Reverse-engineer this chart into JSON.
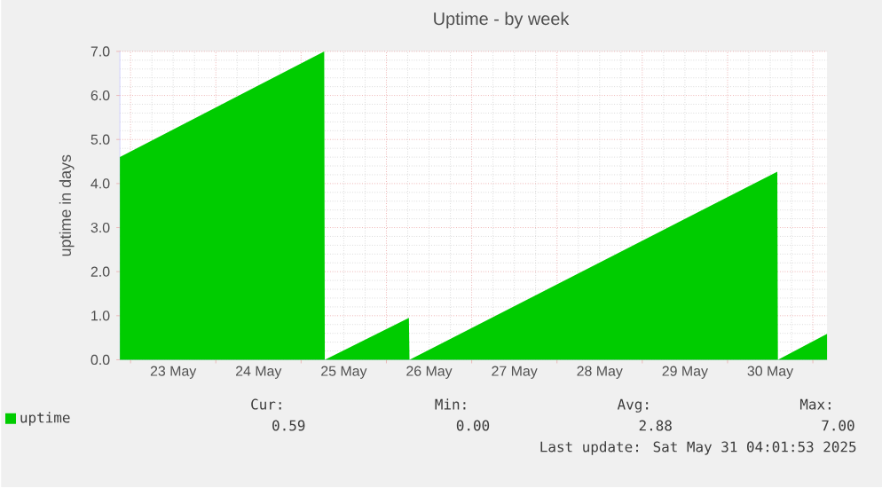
{
  "chart_data": {
    "type": "area",
    "title": "Uptime - by week",
    "ylabel": "uptime in days",
    "xlim": [
      "2025-05-22T21:00",
      "2025-05-31T04:00"
    ],
    "xticks": [
      {
        "value": "2025-05-23",
        "label": null
      },
      {
        "value": "2025-05-23T12:00",
        "label": "23 May"
      },
      {
        "value": "2025-05-24",
        "label": null
      },
      {
        "value": "2025-05-24T12:00",
        "label": "24 May"
      },
      {
        "value": "2025-05-25",
        "label": null
      },
      {
        "value": "2025-05-25T12:00",
        "label": "25 May"
      },
      {
        "value": "2025-05-26",
        "label": null
      },
      {
        "value": "2025-05-26T12:00",
        "label": "26 May"
      },
      {
        "value": "2025-05-27",
        "label": null
      },
      {
        "value": "2025-05-27T12:00",
        "label": "27 May"
      },
      {
        "value": "2025-05-28",
        "label": null
      },
      {
        "value": "2025-05-28T12:00",
        "label": "28 May"
      },
      {
        "value": "2025-05-29",
        "label": null
      },
      {
        "value": "2025-05-29T12:00",
        "label": "29 May"
      },
      {
        "value": "2025-05-30",
        "label": null
      },
      {
        "value": "2025-05-30T12:00",
        "label": "30 May"
      },
      {
        "value": "2025-05-31",
        "label": null
      }
    ],
    "ylim": [
      0,
      7
    ],
    "yticks": [
      {
        "value": 0,
        "label": "0.0"
      },
      {
        "value": 1,
        "label": "1.0"
      },
      {
        "value": 2,
        "label": "2.0"
      },
      {
        "value": 3,
        "label": "3.0"
      },
      {
        "value": 4,
        "label": "4.0"
      },
      {
        "value": 5,
        "label": "5.0"
      },
      {
        "value": 6,
        "label": "6.0"
      },
      {
        "value": 7,
        "label": "7.0"
      }
    ],
    "grid": true,
    "legend": "bottom left",
    "series": [
      {
        "name": "uptime",
        "color": "#00cc00",
        "x": [
          "2025-05-22T21:00",
          "2025-05-25T06:30",
          "2025-05-25T06:40",
          "2025-05-26T06:20",
          "2025-05-26T06:30",
          "2025-05-30T14:00",
          "2025-05-30T14:10",
          "2025-05-31T04:00"
        ],
        "values": [
          4.6,
          7.0,
          0.0,
          0.95,
          0.0,
          4.27,
          0.0,
          0.59
        ]
      }
    ],
    "annotations": [
      "Cur:",
      "0.59",
      "Min:",
      "0.00",
      "Avg:",
      "2.88",
      "Max:",
      "7.00",
      "Last update: Sat May 31 04:01:53 2025"
    ]
  }
}
